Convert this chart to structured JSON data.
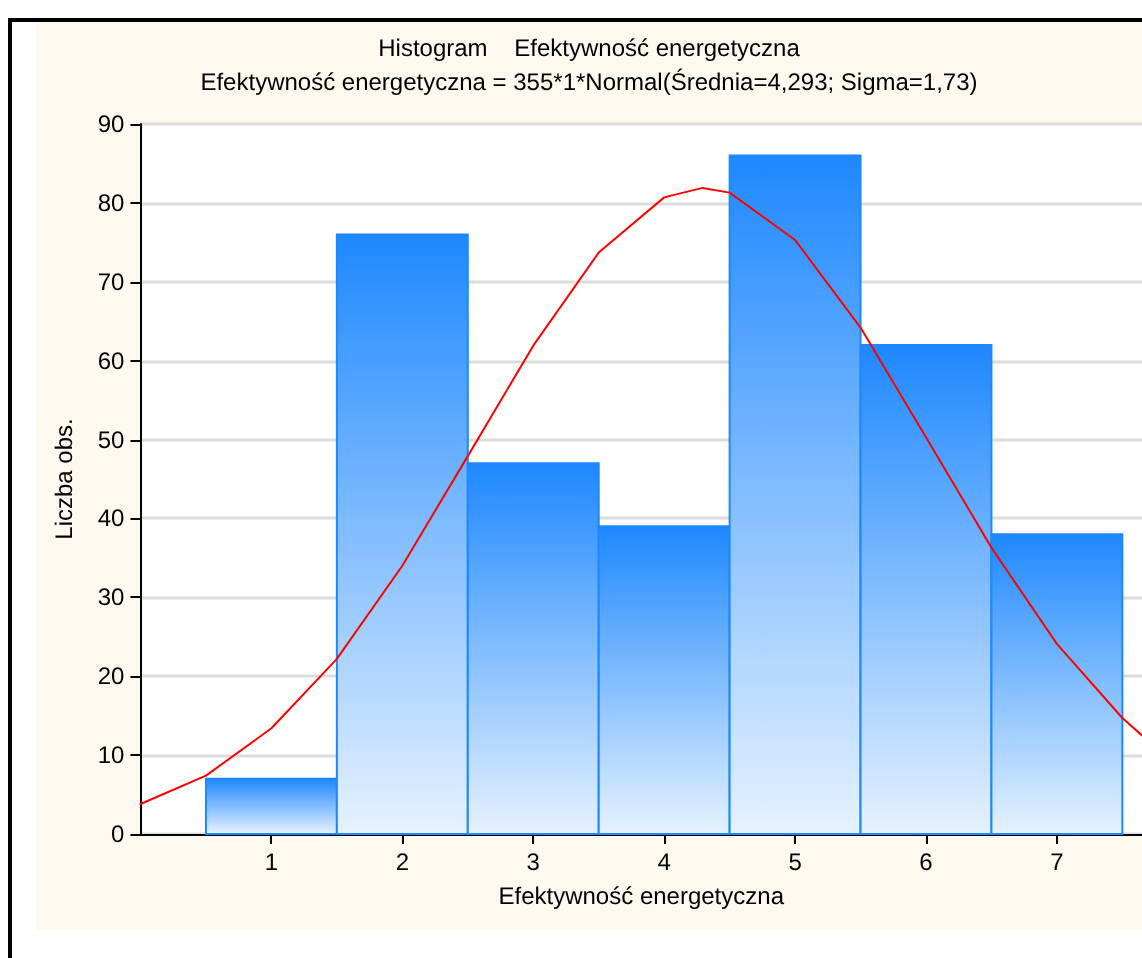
{
  "chart_data": {
    "type": "histogram",
    "title": "Histogram    Efektywność energetyczna",
    "subtitle": "Efektywność energetyczna = 355*1*Normal(Średnia=4,293; Sigma=1,73)",
    "xlabel": "Efektywność energetyczna",
    "ylabel": "Liczba obs.",
    "bins": [
      0.5,
      1.5,
      2.5,
      3.5,
      4.5,
      5.5,
      6.5,
      7.5
    ],
    "values": [
      7,
      76,
      47,
      39,
      86,
      62,
      38
    ],
    "color": "#1e88ff",
    "series": [
      {
        "type": "line",
        "color": "#ff0000",
        "x": [
          0,
          0.5,
          1,
          1.5,
          2,
          2.5,
          3,
          3.5,
          4,
          4.293,
          4.5,
          5,
          5.5,
          6,
          6.5,
          7,
          7.5,
          7.65
        ],
        "values": [
          3.8,
          7.4,
          13.4,
          22.2,
          34.0,
          47.9,
          61.9,
          73.7,
          80.7,
          81.9,
          81.3,
          75.3,
          64.2,
          50.3,
          36.3,
          24.1,
          14.7,
          12.5
        ]
      }
    ],
    "xlim": [
      0,
      7.65
    ],
    "xticks": [
      1,
      2,
      3,
      4,
      5,
      6,
      7
    ],
    "ylim": [
      0,
      90
    ],
    "yticks": [
      0,
      10,
      20,
      30,
      40,
      50,
      60,
      70,
      80,
      90
    ],
    "grid": "y",
    "marker": "none",
    "line_style": "solid"
  }
}
